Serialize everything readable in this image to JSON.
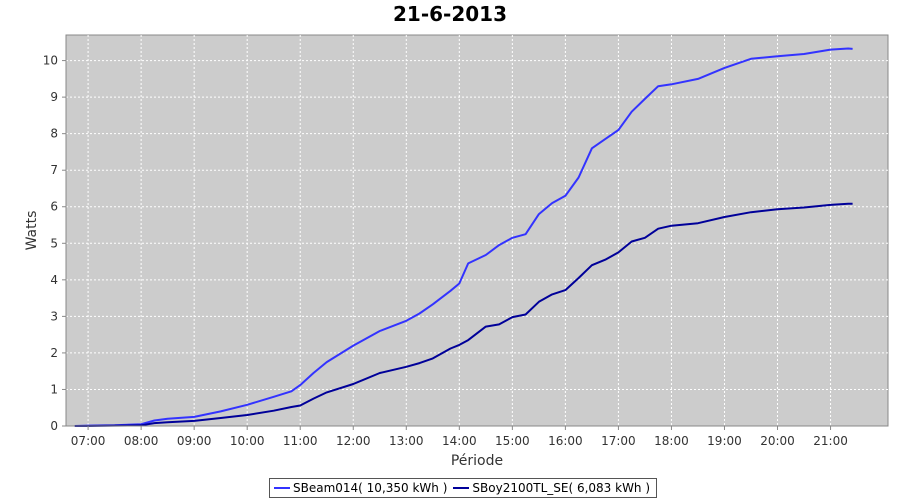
{
  "chart_data": {
    "type": "line",
    "title": "21-6-2013",
    "xlabel": "Période",
    "ylabel": "Watts",
    "xlim": [
      "06:35",
      "22:05"
    ],
    "ylim": [
      0,
      10.7
    ],
    "x_ticks": [
      "07:00",
      "08:00",
      "09:00",
      "10:00",
      "11:00",
      "12:00",
      "13:00",
      "14:00",
      "15:00",
      "16:00",
      "17:00",
      "18:00",
      "19:00",
      "20:00",
      "21:00"
    ],
    "y_ticks": [
      0,
      1,
      2,
      3,
      4,
      5,
      6,
      7,
      8,
      9,
      10
    ],
    "grid": true,
    "legend": "bottom-center",
    "background_color": "#cccccc",
    "x": [
      "06:45",
      "07:00",
      "07:30",
      "08:00",
      "08:15",
      "08:30",
      "09:00",
      "09:30",
      "10:00",
      "10:30",
      "10:50",
      "11:00",
      "11:15",
      "11:30",
      "12:00",
      "12:30",
      "13:00",
      "13:15",
      "13:30",
      "13:50",
      "14:00",
      "14:10",
      "14:30",
      "14:45",
      "15:00",
      "15:15",
      "15:30",
      "15:45",
      "16:00",
      "16:15",
      "16:30",
      "16:45",
      "17:00",
      "17:15",
      "17:30",
      "17:45",
      "18:00",
      "18:30",
      "19:00",
      "19:30",
      "20:00",
      "20:30",
      "21:00",
      "21:20",
      "21:25"
    ],
    "series": [
      {
        "name": "SBeam014( 10,350 kWh )",
        "color": "#3333ff",
        "values": [
          0,
          0.01,
          0.02,
          0.05,
          0.15,
          0.2,
          0.25,
          0.4,
          0.58,
          0.8,
          0.95,
          1.12,
          1.45,
          1.75,
          2.2,
          2.6,
          2.88,
          3.08,
          3.33,
          3.7,
          3.9,
          4.45,
          4.68,
          4.95,
          5.15,
          5.25,
          5.8,
          6.1,
          6.3,
          6.8,
          7.6,
          7.85,
          8.1,
          8.6,
          8.95,
          9.3,
          9.35,
          9.5,
          9.8,
          10.05,
          10.12,
          10.18,
          10.3,
          10.33,
          10.32
        ]
      },
      {
        "name": "SBoy2100TL_SE( 6,083 kWh )",
        "color": "#000099",
        "values": [
          0,
          0,
          0.01,
          0.02,
          0.08,
          0.1,
          0.14,
          0.22,
          0.3,
          0.42,
          0.52,
          0.56,
          0.75,
          0.92,
          1.15,
          1.45,
          1.62,
          1.72,
          1.85,
          2.12,
          2.22,
          2.35,
          2.72,
          2.78,
          2.98,
          3.05,
          3.4,
          3.6,
          3.72,
          4.05,
          4.4,
          4.55,
          4.75,
          5.05,
          5.15,
          5.4,
          5.48,
          5.55,
          5.72,
          5.85,
          5.93,
          5.98,
          6.05,
          6.08,
          6.08
        ]
      }
    ]
  }
}
